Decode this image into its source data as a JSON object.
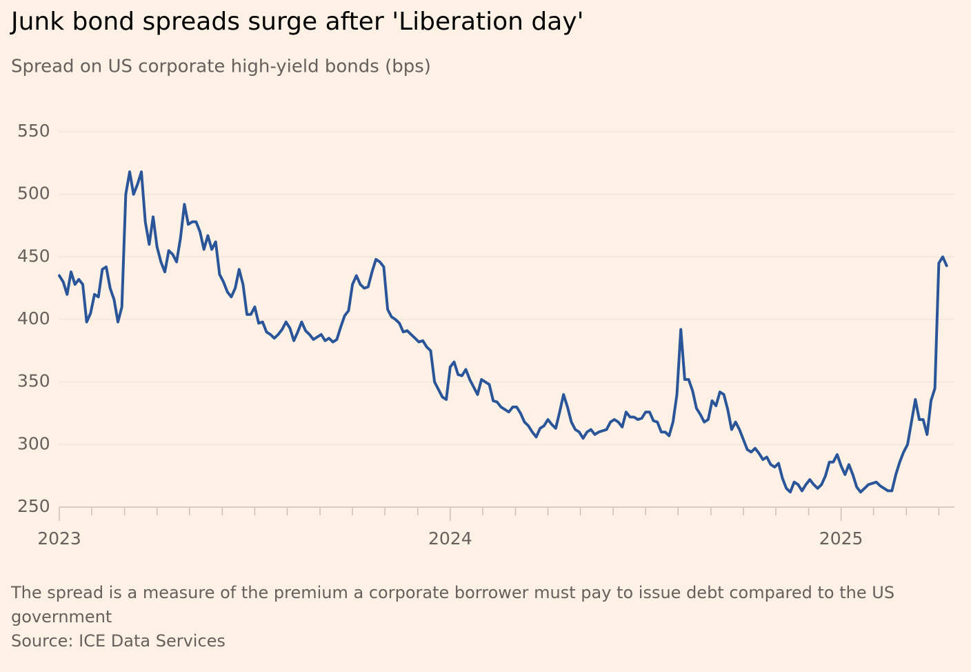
{
  "chart_data": {
    "type": "line",
    "title": "Junk bond spreads surge after 'Liberation day'",
    "subtitle": "Spread on US corporate high-yield bonds (bps)",
    "note": "The spread is a measure of the premium a corporate borrower must pay to issue debt compared to the US government",
    "source": "Source: ICE Data Services",
    "color": "#2a5599",
    "grid": true,
    "xlim": [
      2023,
      2025.29
    ],
    "xticks": [
      2023,
      2024,
      2025
    ],
    "xminorticks": [
      2023.083,
      2023.167,
      2023.25,
      2023.333,
      2023.417,
      2023.5,
      2023.583,
      2023.667,
      2023.75,
      2023.833,
      2023.917,
      2024.083,
      2024.167,
      2024.25,
      2024.333,
      2024.417,
      2024.5,
      2024.583,
      2024.667,
      2024.75,
      2024.833,
      2024.917,
      2025.083,
      2025.167,
      2025.25
    ],
    "ylim": [
      250,
      550
    ],
    "yticks": [
      250,
      300,
      350,
      400,
      450,
      500,
      550
    ],
    "x": [
      2023,
      2023.01,
      2023.02,
      2023.03,
      2023.04,
      2023.05,
      2023.06,
      2023.07,
      2023.08,
      2023.09,
      2023.1,
      2023.11,
      2023.12,
      2023.13,
      2023.14,
      2023.15,
      2023.16,
      2023.17,
      2023.18,
      2023.19,
      2023.2,
      2023.21,
      2023.22,
      2023.23,
      2023.24,
      2023.25,
      2023.26,
      2023.27,
      2023.28,
      2023.29,
      2023.3,
      2023.31,
      2023.32,
      2023.33,
      2023.34,
      2023.35,
      2023.36,
      2023.37,
      2023.38,
      2023.39,
      2023.4,
      2023.41,
      2023.42,
      2023.43,
      2023.44,
      2023.45,
      2023.46,
      2023.47,
      2023.48,
      2023.49,
      2023.5,
      2023.51,
      2023.52,
      2023.53,
      2023.54,
      2023.55,
      2023.56,
      2023.57,
      2023.58,
      2023.59,
      2023.6,
      2023.61,
      2023.62,
      2023.63,
      2023.64,
      2023.65,
      2023.66,
      2023.67,
      2023.68,
      2023.69,
      2023.7,
      2023.71,
      2023.72,
      2023.73,
      2023.74,
      2023.75,
      2023.76,
      2023.77,
      2023.78,
      2023.79,
      2023.8,
      2023.81,
      2023.82,
      2023.83,
      2023.84,
      2023.85,
      2023.86,
      2023.87,
      2023.88,
      2023.89,
      2023.9,
      2023.91,
      2023.92,
      2023.93,
      2023.94,
      2023.95,
      2023.96,
      2023.97,
      2023.98,
      2023.99,
      2024,
      2024.01,
      2024.02,
      2024.03,
      2024.04,
      2024.05,
      2024.06,
      2024.07,
      2024.08,
      2024.09,
      2024.1,
      2024.11,
      2024.12,
      2024.13,
      2024.14,
      2024.15,
      2024.16,
      2024.17,
      2024.18,
      2024.19,
      2024.2,
      2024.21,
      2024.22,
      2024.23,
      2024.24,
      2024.25,
      2024.26,
      2024.27,
      2024.28,
      2024.29,
      2024.3,
      2024.31,
      2024.32,
      2024.33,
      2024.34,
      2024.35,
      2024.36,
      2024.37,
      2024.38,
      2024.39,
      2024.4,
      2024.41,
      2024.42,
      2024.43,
      2024.44,
      2024.45,
      2024.46,
      2024.47,
      2024.48,
      2024.49,
      2024.5,
      2024.51,
      2024.52,
      2024.53,
      2024.54,
      2024.55,
      2024.56,
      2024.57,
      2024.58,
      2024.59,
      2024.6,
      2024.61,
      2024.62,
      2024.63,
      2024.64,
      2024.65,
      2024.66,
      2024.67,
      2024.68,
      2024.69,
      2024.7,
      2024.71,
      2024.72,
      2024.73,
      2024.74,
      2024.75,
      2024.76,
      2024.77,
      2024.78,
      2024.79,
      2024.8,
      2024.81,
      2024.82,
      2024.83,
      2024.84,
      2024.85,
      2024.86,
      2024.87,
      2024.88,
      2024.89,
      2024.9,
      2024.91,
      2024.92,
      2024.93,
      2024.94,
      2024.95,
      2024.96,
      2024.97,
      2024.98,
      2024.99,
      2025,
      2025.01,
      2025.02,
      2025.03,
      2025.04,
      2025.05,
      2025.06,
      2025.07,
      2025.08,
      2025.09,
      2025.1,
      2025.11,
      2025.12,
      2025.13,
      2025.14,
      2025.15,
      2025.16,
      2025.17,
      2025.18,
      2025.19,
      2025.2,
      2025.21,
      2025.22,
      2025.23,
      2025.24,
      2025.25,
      2025.26,
      2025.27
    ],
    "values": [
      435,
      430,
      420,
      438,
      428,
      432,
      428,
      398,
      405,
      420,
      418,
      440,
      442,
      425,
      416,
      398,
      410,
      500,
      518,
      500,
      508,
      518,
      478,
      460,
      482,
      458,
      446,
      438,
      455,
      452,
      446,
      465,
      492,
      476,
      478,
      478,
      470,
      456,
      467,
      456,
      462,
      436,
      430,
      422,
      418,
      425,
      440,
      428,
      404,
      404,
      410,
      397,
      398,
      390,
      388,
      385,
      388,
      392,
      398,
      393,
      383,
      390,
      398,
      391,
      388,
      384,
      386,
      388,
      383,
      385,
      382,
      384,
      394,
      403,
      407,
      428,
      435,
      428,
      425,
      426,
      438,
      448,
      446,
      442,
      408,
      402,
      400,
      397,
      390,
      391,
      388,
      385,
      382,
      383,
      378,
      375,
      350,
      344,
      338,
      336,
      362,
      366,
      356,
      355,
      360,
      352,
      346,
      340,
      352,
      350,
      348,
      335,
      334,
      330,
      328,
      326,
      330,
      330,
      325,
      318,
      315,
      310,
      306,
      313,
      315,
      320,
      316,
      313,
      326,
      340,
      330,
      318,
      312,
      310,
      305,
      310,
      312,
      308,
      310,
      311,
      312,
      318,
      320,
      318,
      314,
      326,
      322,
      322,
      320,
      321,
      326,
      326,
      319,
      318,
      310,
      310,
      307,
      318,
      340,
      392,
      352,
      352,
      343,
      329,
      324,
      318,
      320,
      335,
      331,
      342,
      340,
      328,
      312,
      318,
      312,
      304,
      296,
      294,
      297,
      293,
      288,
      290,
      284,
      282,
      285,
      273,
      265,
      262,
      270,
      268,
      263,
      268,
      272,
      268,
      265,
      268,
      275,
      286,
      286,
      292,
      283,
      276,
      284,
      276,
      266,
      262,
      265,
      268,
      269,
      270,
      267,
      265,
      263,
      263,
      276,
      286,
      294,
      300,
      318,
      336,
      320,
      320,
      308,
      335,
      345,
      445,
      450,
      443
    ]
  }
}
